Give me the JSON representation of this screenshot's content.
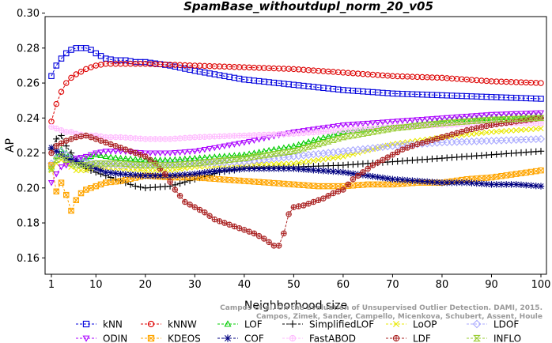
{
  "chart_data": {
    "type": "line",
    "title": "SpamBase_withoutdupl_norm_20_v05",
    "xlabel": "Neighborhood size",
    "ylabel": "AP",
    "xlim": [
      0,
      100
    ],
    "ylim": [
      0.15,
      0.3
    ],
    "x_ticks": [
      1,
      10,
      20,
      30,
      40,
      50,
      60,
      70,
      80,
      90,
      100
    ],
    "y_ticks": [
      0.16,
      0.18,
      0.2,
      0.22,
      0.24,
      0.26,
      0.28,
      0.3
    ],
    "y_tick_labels": [
      "0.16",
      "0.18",
      "0.20",
      "0.22",
      "0.24",
      "0.26",
      "0.28",
      "0.30"
    ],
    "grid": false,
    "legend_position": "bottom",
    "watermark": {
      "line1": "Campos et al. On the Evaluation of Unsupervised Outlier Detection. DAMI, 2015.",
      "line2": "Campos, Zimek, Sander, Campello, Micenkova, Schubert, Assent, Houle"
    },
    "series": [
      {
        "name": "kNN",
        "color": "#0000dd",
        "marker": "square",
        "anchors": [
          [
            1,
            0.264
          ],
          [
            2,
            0.27
          ],
          [
            3,
            0.274
          ],
          [
            4,
            0.277
          ],
          [
            5,
            0.279
          ],
          [
            6,
            0.28
          ],
          [
            7,
            0.28
          ],
          [
            8,
            0.28
          ],
          [
            9,
            0.279
          ],
          [
            10,
            0.277
          ],
          [
            12,
            0.274
          ],
          [
            14,
            0.273
          ],
          [
            16,
            0.273
          ],
          [
            18,
            0.272
          ],
          [
            20,
            0.272
          ],
          [
            25,
            0.27
          ],
          [
            30,
            0.267
          ],
          [
            40,
            0.262
          ],
          [
            50,
            0.259
          ],
          [
            60,
            0.256
          ],
          [
            70,
            0.254
          ],
          [
            80,
            0.253
          ],
          [
            90,
            0.252
          ],
          [
            100,
            0.251
          ]
        ]
      },
      {
        "name": "kNNW",
        "color": "#dd0000",
        "marker": "circle",
        "anchors": [
          [
            1,
            0.238
          ],
          [
            2,
            0.248
          ],
          [
            3,
            0.255
          ],
          [
            4,
            0.26
          ],
          [
            5,
            0.263
          ],
          [
            6,
            0.265
          ],
          [
            8,
            0.268
          ],
          [
            10,
            0.27
          ],
          [
            12,
            0.271
          ],
          [
            14,
            0.271
          ],
          [
            20,
            0.271
          ],
          [
            30,
            0.27
          ],
          [
            40,
            0.269
          ],
          [
            50,
            0.268
          ],
          [
            60,
            0.266
          ],
          [
            70,
            0.264
          ],
          [
            80,
            0.263
          ],
          [
            90,
            0.261
          ],
          [
            100,
            0.26
          ]
        ]
      },
      {
        "name": "LOF",
        "color": "#00cc00",
        "marker": "triangle-up",
        "anchors": [
          [
            1,
            0.212
          ],
          [
            2,
            0.218
          ],
          [
            3,
            0.222
          ],
          [
            4,
            0.22
          ],
          [
            5,
            0.218
          ],
          [
            6,
            0.216
          ],
          [
            8,
            0.217
          ],
          [
            10,
            0.219
          ],
          [
            12,
            0.218
          ],
          [
            15,
            0.217
          ],
          [
            20,
            0.216
          ],
          [
            25,
            0.216
          ],
          [
            30,
            0.217
          ],
          [
            40,
            0.219
          ],
          [
            50,
            0.224
          ],
          [
            60,
            0.232
          ],
          [
            70,
            0.235
          ],
          [
            80,
            0.238
          ],
          [
            90,
            0.24
          ],
          [
            100,
            0.241
          ]
        ]
      },
      {
        "name": "SimplifiedLOF",
        "color": "#000000",
        "marker": "plus",
        "anchors": [
          [
            1,
            0.222
          ],
          [
            2,
            0.228
          ],
          [
            3,
            0.23
          ],
          [
            4,
            0.224
          ],
          [
            5,
            0.22
          ],
          [
            6,
            0.216
          ],
          [
            8,
            0.211
          ],
          [
            10,
            0.209
          ],
          [
            12,
            0.207
          ],
          [
            15,
            0.204
          ],
          [
            18,
            0.201
          ],
          [
            20,
            0.2
          ],
          [
            25,
            0.201
          ],
          [
            30,
            0.205
          ],
          [
            35,
            0.209
          ],
          [
            40,
            0.211
          ],
          [
            45,
            0.212
          ],
          [
            50,
            0.212
          ],
          [
            60,
            0.213
          ],
          [
            70,
            0.215
          ],
          [
            80,
            0.217
          ],
          [
            90,
            0.219
          ],
          [
            100,
            0.221
          ]
        ]
      },
      {
        "name": "LoOP",
        "color": "#e8e800",
        "marker": "x",
        "anchors": [
          [
            1,
            0.21
          ],
          [
            2,
            0.214
          ],
          [
            3,
            0.216
          ],
          [
            4,
            0.214
          ],
          [
            5,
            0.212
          ],
          [
            6,
            0.21
          ],
          [
            8,
            0.21
          ],
          [
            10,
            0.212
          ],
          [
            15,
            0.211
          ],
          [
            20,
            0.21
          ],
          [
            25,
            0.21
          ],
          [
            30,
            0.212
          ],
          [
            40,
            0.213
          ],
          [
            50,
            0.214
          ],
          [
            60,
            0.218
          ],
          [
            70,
            0.225
          ],
          [
            80,
            0.229
          ],
          [
            90,
            0.232
          ],
          [
            100,
            0.234
          ]
        ]
      },
      {
        "name": "LDOF",
        "color": "#aaaaff",
        "marker": "diamond",
        "anchors": [
          [
            1,
            0.214
          ],
          [
            2,
            0.219
          ],
          [
            3,
            0.221
          ],
          [
            4,
            0.219
          ],
          [
            5,
            0.217
          ],
          [
            6,
            0.216
          ],
          [
            8,
            0.215
          ],
          [
            10,
            0.214
          ],
          [
            15,
            0.213
          ],
          [
            20,
            0.213
          ],
          [
            30,
            0.214
          ],
          [
            40,
            0.215
          ],
          [
            50,
            0.218
          ],
          [
            60,
            0.221
          ],
          [
            70,
            0.224
          ],
          [
            80,
            0.226
          ],
          [
            90,
            0.227
          ],
          [
            100,
            0.228
          ]
        ]
      },
      {
        "name": "ODIN",
        "color": "#aa00ff",
        "marker": "triangle-down",
        "anchors": [
          [
            1,
            0.203
          ],
          [
            2,
            0.208
          ],
          [
            3,
            0.212
          ],
          [
            4,
            0.213
          ],
          [
            5,
            0.215
          ],
          [
            6,
            0.217
          ],
          [
            8,
            0.218
          ],
          [
            10,
            0.22
          ],
          [
            12,
            0.221
          ],
          [
            15,
            0.221
          ],
          [
            20,
            0.22
          ],
          [
            25,
            0.22
          ],
          [
            30,
            0.221
          ],
          [
            40,
            0.226
          ],
          [
            50,
            0.232
          ],
          [
            60,
            0.236
          ],
          [
            70,
            0.238
          ],
          [
            80,
            0.24
          ],
          [
            90,
            0.242
          ],
          [
            100,
            0.243
          ]
        ]
      },
      {
        "name": "KDEOS",
        "color": "#ffa500",
        "marker": "square-x",
        "anchors": [
          [
            1,
            0.213
          ],
          [
            2,
            0.198
          ],
          [
            3,
            0.203
          ],
          [
            4,
            0.196
          ],
          [
            5,
            0.187
          ],
          [
            6,
            0.193
          ],
          [
            7,
            0.197
          ],
          [
            8,
            0.199
          ],
          [
            10,
            0.201
          ],
          [
            12,
            0.203
          ],
          [
            15,
            0.204
          ],
          [
            20,
            0.207
          ],
          [
            25,
            0.206
          ],
          [
            30,
            0.206
          ],
          [
            35,
            0.205
          ],
          [
            40,
            0.204
          ],
          [
            45,
            0.203
          ],
          [
            50,
            0.202
          ],
          [
            55,
            0.201
          ],
          [
            60,
            0.201
          ],
          [
            65,
            0.202
          ],
          [
            70,
            0.202
          ],
          [
            75,
            0.203
          ],
          [
            80,
            0.203
          ],
          [
            85,
            0.205
          ],
          [
            90,
            0.206
          ],
          [
            95,
            0.208
          ],
          [
            100,
            0.21
          ]
        ]
      },
      {
        "name": "COF",
        "color": "#000080",
        "marker": "star",
        "anchors": [
          [
            1,
            0.223
          ],
          [
            2,
            0.221
          ],
          [
            3,
            0.219
          ],
          [
            4,
            0.217
          ],
          [
            6,
            0.215
          ],
          [
            8,
            0.213
          ],
          [
            10,
            0.211
          ],
          [
            12,
            0.209
          ],
          [
            15,
            0.208
          ],
          [
            20,
            0.207
          ],
          [
            25,
            0.207
          ],
          [
            30,
            0.208
          ],
          [
            35,
            0.21
          ],
          [
            40,
            0.211
          ],
          [
            45,
            0.211
          ],
          [
            50,
            0.211
          ],
          [
            55,
            0.21
          ],
          [
            60,
            0.209
          ],
          [
            65,
            0.207
          ],
          [
            70,
            0.205
          ],
          [
            75,
            0.204
          ],
          [
            80,
            0.203
          ],
          [
            85,
            0.203
          ],
          [
            90,
            0.202
          ],
          [
            95,
            0.202
          ],
          [
            100,
            0.201
          ]
        ]
      },
      {
        "name": "FastABOD",
        "color": "#ffbbff",
        "marker": "circle-star",
        "anchors": [
          [
            1,
            0.235
          ],
          [
            2,
            0.234
          ],
          [
            3,
            0.233
          ],
          [
            4,
            0.232
          ],
          [
            5,
            0.232
          ],
          [
            6,
            0.231
          ],
          [
            8,
            0.23
          ],
          [
            10,
            0.23
          ],
          [
            12,
            0.229
          ],
          [
            15,
            0.229
          ],
          [
            20,
            0.228
          ],
          [
            25,
            0.228
          ],
          [
            30,
            0.229
          ],
          [
            40,
            0.23
          ],
          [
            50,
            0.231
          ],
          [
            60,
            0.233
          ],
          [
            70,
            0.235
          ],
          [
            80,
            0.236
          ],
          [
            90,
            0.237
          ],
          [
            100,
            0.237
          ]
        ]
      },
      {
        "name": "LDF",
        "color": "#aa2222",
        "marker": "circle-plus",
        "anchors": [
          [
            1,
            0.22
          ],
          [
            2,
            0.224
          ],
          [
            4,
            0.227
          ],
          [
            6,
            0.229
          ],
          [
            8,
            0.23
          ],
          [
            10,
            0.228
          ],
          [
            12,
            0.226
          ],
          [
            14,
            0.224
          ],
          [
            16,
            0.222
          ],
          [
            18,
            0.22
          ],
          [
            20,
            0.218
          ],
          [
            22,
            0.214
          ],
          [
            24,
            0.208
          ],
          [
            26,
            0.199
          ],
          [
            28,
            0.192
          ],
          [
            30,
            0.189
          ],
          [
            32,
            0.186
          ],
          [
            34,
            0.182
          ],
          [
            36,
            0.18
          ],
          [
            38,
            0.178
          ],
          [
            40,
            0.176
          ],
          [
            42,
            0.174
          ],
          [
            44,
            0.171
          ],
          [
            46,
            0.167
          ],
          [
            47,
            0.167
          ],
          [
            48,
            0.174
          ],
          [
            49,
            0.185
          ],
          [
            50,
            0.189
          ],
          [
            52,
            0.19
          ],
          [
            54,
            0.192
          ],
          [
            56,
            0.194
          ],
          [
            58,
            0.197
          ],
          [
            60,
            0.199
          ],
          [
            62,
            0.205
          ],
          [
            64,
            0.209
          ],
          [
            66,
            0.213
          ],
          [
            68,
            0.216
          ],
          [
            70,
            0.219
          ],
          [
            72,
            0.222
          ],
          [
            75,
            0.225
          ],
          [
            80,
            0.229
          ],
          [
            85,
            0.233
          ],
          [
            90,
            0.236
          ],
          [
            95,
            0.238
          ],
          [
            100,
            0.24
          ]
        ]
      },
      {
        "name": "INFLO",
        "color": "#99cc33",
        "marker": "hourglass",
        "anchors": [
          [
            1,
            0.211
          ],
          [
            2,
            0.216
          ],
          [
            3,
            0.218
          ],
          [
            4,
            0.216
          ],
          [
            5,
            0.214
          ],
          [
            6,
            0.213
          ],
          [
            8,
            0.213
          ],
          [
            10,
            0.214
          ],
          [
            15,
            0.214
          ],
          [
            20,
            0.213
          ],
          [
            25,
            0.213
          ],
          [
            30,
            0.214
          ],
          [
            40,
            0.217
          ],
          [
            50,
            0.221
          ],
          [
            60,
            0.229
          ],
          [
            70,
            0.234
          ],
          [
            80,
            0.237
          ],
          [
            90,
            0.239
          ],
          [
            100,
            0.24
          ]
        ]
      }
    ]
  }
}
